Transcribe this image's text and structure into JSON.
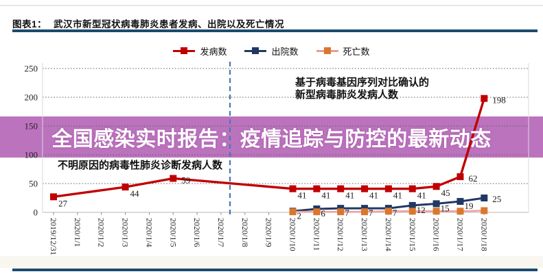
{
  "header": {
    "figure_label": "图表1：",
    "title": "武汉市新型冠状病毒肺炎患者发病、出院以及死亡情况"
  },
  "banner": {
    "text": "全国感染实时报告：疫情追踪与防控的最新动态",
    "bg_color": "#bc73be",
    "text_color": "#ffffff"
  },
  "legend": [
    {
      "label": "发病数",
      "line_color": "#c00000",
      "marker_color": "#c00000"
    },
    {
      "label": "出院数",
      "line_color": "#1f3864",
      "marker_color": "#1f3864"
    },
    {
      "label": "死亡数",
      "line_color": "#e89d96",
      "marker_color": "#d9772e"
    }
  ],
  "annotations": {
    "unknown_pneumonia": "不明原因的病毒性肺炎诊断发病人数",
    "confirmed_line1": "基于病毒基因序列对比确认的",
    "confirmed_line2": "新型病毒肺炎发病人数"
  },
  "chart_data": {
    "type": "line",
    "title": "武汉市新型冠状病毒肺炎患者发病、出院以及死亡情况",
    "xlabel": "",
    "ylabel": "",
    "ylim": [
      0,
      250
    ],
    "yticks": [
      0,
      50,
      100,
      150,
      200,
      250
    ],
    "grid": "horizontal-dotted",
    "legend_position": "top-center",
    "dashed_vline": {
      "between": [
        "2020/1/7",
        "2020/1/8"
      ],
      "color": "#4d7ab5"
    },
    "categories": [
      "2019/12/31",
      "2020/1/1",
      "2020/1/2",
      "2020/1/3",
      "2020/1/4",
      "2020/1/5",
      "2020/1/6",
      "2020/1/7",
      "2020/1/8",
      "2020/1/9",
      "2020/1/10",
      "2020/1/11",
      "2020/1/12",
      "2020/1/13",
      "2020/1/14",
      "2020/1/15",
      "2020/1/16",
      "2020/1/17",
      "2020/1/18"
    ],
    "series": [
      {
        "name": "发病数",
        "line_color": "#c00000",
        "marker_color": "#c00000",
        "labels_shown": true,
        "values": [
          27,
          null,
          null,
          44,
          null,
          59,
          null,
          null,
          null,
          null,
          41,
          41,
          41,
          41,
          41,
          41,
          45,
          62,
          198
        ]
      },
      {
        "name": "出院数",
        "line_color": "#1f3864",
        "marker_color": "#1f3864",
        "labels_shown": true,
        "values": [
          null,
          null,
          null,
          null,
          null,
          null,
          null,
          null,
          null,
          null,
          2,
          6,
          7,
          7,
          7,
          12,
          15,
          19,
          25
        ]
      },
      {
        "name": "死亡数",
        "line_color": "#efa3a0",
        "marker_color": "#d9772e",
        "labels_shown": false,
        "values_estimated": true,
        "values": [
          null,
          null,
          null,
          null,
          null,
          null,
          null,
          null,
          null,
          null,
          1,
          1,
          1,
          1,
          2,
          2,
          2,
          2,
          3
        ]
      }
    ]
  }
}
